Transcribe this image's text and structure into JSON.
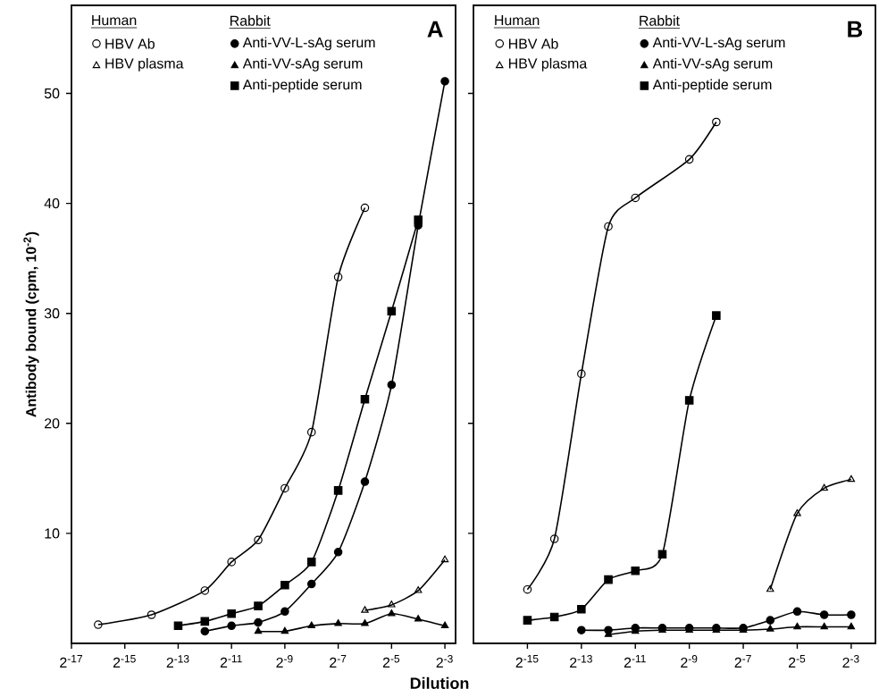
{
  "chart_data": [
    {
      "type": "line",
      "title": "A",
      "xlabel": "Dilution",
      "ylabel": "Antibody bound (cpm, 10$^{-2}$)",
      "annotations": [
        "Human",
        "Rabbit"
      ],
      "log": "x",
      "xlim": [
        7.62939453125e-06,
        0.165
      ],
      "ylim": [
        0,
        58
      ],
      "xticks": [
        {
          "value": 7.62939453125e-06,
          "label": "2$^{-17}$"
        },
        {
          "value": 3.0517578125e-05,
          "label": "2$^{-15}$"
        },
        {
          "value": 0.0001220703125,
          "label": "2$^{-13}$"
        },
        {
          "value": 0.00048828125,
          "label": "2$^{-11}$"
        },
        {
          "value": 0.001953125,
          "label": "2$^{-9}$"
        },
        {
          "value": 0.0078125,
          "label": "2$^{-7}$"
        },
        {
          "value": 0.03125,
          "label": "2$^{-5}$"
        },
        {
          "value": 0.125,
          "label": "2$^{-3}$"
        }
      ],
      "yticks": [
        10,
        20,
        30,
        40,
        50
      ],
      "legend": "top left",
      "series": [
        {
          "name": "HBV Ab",
          "color": "#000000",
          "marker": "circle",
          "x": [
            1.52587890625e-05,
            6.103515625e-05,
            0.000244140625,
            0.00048828125,
            0.0009765625,
            0.001953125,
            0.00390625,
            0.0078125,
            0.015625
          ],
          "values": [
            1.7,
            2.6,
            4.8,
            7.4,
            9.4,
            14.1,
            19.2,
            33.3,
            39.6
          ]
        },
        {
          "name": "HBV plasma",
          "color": "#000000",
          "marker": "triangle",
          "x": [
            0.015625,
            0.03125,
            0.0625,
            0.125
          ],
          "values": [
            3.0,
            3.5,
            4.8,
            7.6
          ]
        },
        {
          "name": "Anti-VV-L-sAg serum",
          "color": "#000000",
          "marker": "circle",
          "x": [
            0.000244140625,
            0.00048828125,
            0.0009765625,
            0.001953125,
            0.00390625,
            0.0078125,
            0.015625,
            0.03125,
            0.0625,
            0.125
          ],
          "values": [
            1.1,
            1.6,
            1.9,
            2.9,
            5.4,
            8.3,
            14.7,
            23.5,
            38.0,
            51.1
          ]
        },
        {
          "name": "Anti-VV-sAg serum",
          "color": "#000000",
          "marker": "triangle",
          "x": [
            0.0009765625,
            0.001953125,
            0.00390625,
            0.0078125,
            0.015625,
            0.03125,
            0.0625,
            0.125
          ],
          "values": [
            1.1,
            1.1,
            1.6,
            1.8,
            1.8,
            2.7,
            2.2,
            1.6
          ]
        },
        {
          "name": "Anti-peptide serum",
          "color": "#000000",
          "marker": "square",
          "x": [
            0.0001220703125,
            0.000244140625,
            0.00048828125,
            0.0009765625,
            0.001953125,
            0.00390625,
            0.0078125,
            0.015625,
            0.03125,
            0.0625
          ],
          "values": [
            1.6,
            2.0,
            2.7,
            3.4,
            5.3,
            7.4,
            13.9,
            22.2,
            30.2,
            38.5
          ]
        }
      ]
    },
    {
      "type": "line",
      "title": "B",
      "annotations": [
        "Human",
        "Rabbit"
      ],
      "log": "x",
      "xlim": [
        7.62939453125e-06,
        0.233
      ],
      "ylim": [
        0,
        58
      ],
      "xticks": [
        {
          "value": 3.0517578125e-05,
          "label": "2$^{-15}$"
        },
        {
          "value": 0.0001220703125,
          "label": "2$^{-13}$"
        },
        {
          "value": 0.00048828125,
          "label": "2$^{-11}$"
        },
        {
          "value": 0.001953125,
          "label": "2$^{-9}$"
        },
        {
          "value": 0.0078125,
          "label": "2$^{-7}$"
        },
        {
          "value": 0.03125,
          "label": "2$^{-5}$"
        },
        {
          "value": 0.125,
          "label": "2$^{-3}$"
        }
      ],
      "yticks": [
        10,
        20,
        30,
        40,
        50
      ],
      "tick_labels": "x",
      "legend": "top left",
      "series": [
        {
          "name": "HBV Ab",
          "color": "#000000",
          "marker": "circle",
          "x": [
            3.0517578125e-05,
            6.103515625e-05,
            0.0001220703125,
            0.000244140625,
            0.00048828125,
            0.001953125,
            0.00390625
          ],
          "values": [
            4.9,
            9.5,
            24.5,
            37.9,
            40.5,
            44.0,
            47.4
          ]
        },
        {
          "name": "HBV plasma",
          "color": "#000000",
          "marker": "triangle",
          "x": [
            0.015625,
            0.03125,
            0.0625,
            0.125
          ],
          "values": [
            4.9,
            11.8,
            14.1,
            14.9
          ]
        },
        {
          "name": "Anti-VV-L-sAg serum",
          "color": "#000000",
          "marker": "circle",
          "x": [
            0.0001220703125,
            0.000244140625,
            0.00048828125,
            0.0009765625,
            0.001953125,
            0.00390625,
            0.0078125,
            0.015625,
            0.03125,
            0.0625,
            0.125
          ],
          "values": [
            1.2,
            1.2,
            1.4,
            1.4,
            1.4,
            1.4,
            1.4,
            2.1,
            2.9,
            2.6,
            2.6
          ]
        },
        {
          "name": "Anti-VV-sAg serum",
          "color": "#000000",
          "marker": "triangle",
          "x": [
            0.000244140625,
            0.00048828125,
            0.0009765625,
            0.001953125,
            0.00390625,
            0.0078125,
            0.015625,
            0.03125,
            0.0625,
            0.125
          ],
          "values": [
            0.8,
            1.1,
            1.2,
            1.2,
            1.2,
            1.2,
            1.3,
            1.5,
            1.5,
            1.5
          ]
        },
        {
          "name": "Anti-peptide serum",
          "color": "#000000",
          "marker": "square",
          "x": [
            3.0517578125e-05,
            6.103515625e-05,
            0.0001220703125,
            0.000244140625,
            0.00048828125,
            0.0009765625,
            0.001953125,
            0.00390625
          ],
          "values": [
            2.1,
            2.4,
            3.1,
            5.8,
            6.6,
            8.1,
            22.1,
            29.8
          ]
        }
      ]
    }
  ]
}
